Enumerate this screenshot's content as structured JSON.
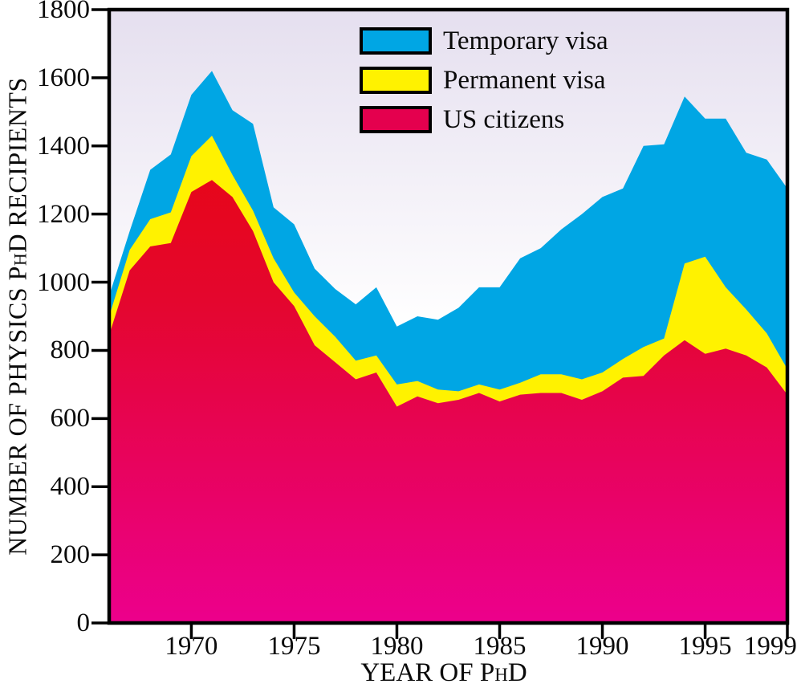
{
  "figure": {
    "y_axis": {
      "title": "NUMBER OF PHYSICS PhD RECIPIENTS",
      "ticks": [
        0,
        200,
        400,
        600,
        800,
        1000,
        1200,
        1400,
        1600,
        1800
      ],
      "min": 0,
      "max": 1800
    },
    "x_axis": {
      "title": "YEAR OF PhD",
      "ticks": [
        1970,
        1975,
        1980,
        1985,
        1990,
        1995,
        1999
      ],
      "min": 1966,
      "max": 1999
    },
    "legend": [
      {
        "label": "Temporary visa",
        "color": "#00A6E4"
      },
      {
        "label": "Permanent visa",
        "color": "#FFF200"
      },
      {
        "label": "US citizens",
        "color": "#E4004E"
      }
    ],
    "colors": {
      "temporary_visa_area": "#00A6E4",
      "permanent_visa_area": "#FFF200",
      "us_citizens_top": "#E80712",
      "us_citizens_bottom": "#EC008C",
      "plot_bg_top": "#E5DFEF",
      "plot_bg_bottom": "#FFFFFF",
      "frame": "#000000"
    }
  },
  "chart_data": {
    "type": "area",
    "stacked": true,
    "title": "",
    "xlabel": "YEAR OF PhD",
    "ylabel": "NUMBER OF PHYSICS PhD RECIPIENTS",
    "xlim": [
      1966,
      1999
    ],
    "ylim": [
      0,
      1800
    ],
    "grid": false,
    "legend_position": "top-center-inside",
    "x": [
      1966,
      1967,
      1968,
      1969,
      1970,
      1971,
      1972,
      1973,
      1974,
      1975,
      1976,
      1977,
      1978,
      1979,
      1980,
      1981,
      1982,
      1983,
      1984,
      1985,
      1986,
      1987,
      1988,
      1989,
      1990,
      1991,
      1992,
      1993,
      1994,
      1995,
      1996,
      1997,
      1998,
      1999
    ],
    "series": [
      {
        "name": "US citizens",
        "values": [
          845,
          1035,
          1105,
          1115,
          1265,
          1300,
          1250,
          1150,
          1000,
          930,
          815,
          765,
          715,
          735,
          635,
          665,
          645,
          655,
          675,
          650,
          670,
          675,
          675,
          655,
          680,
          720,
          725,
          785,
          830,
          790,
          805,
          785,
          750,
          670
        ]
      },
      {
        "name": "Permanent visa",
        "values": [
          55,
          60,
          80,
          90,
          105,
          130,
          65,
          60,
          70,
          40,
          85,
          75,
          55,
          50,
          65,
          45,
          40,
          25,
          25,
          35,
          35,
          55,
          55,
          60,
          55,
          55,
          85,
          50,
          225,
          285,
          180,
          135,
          100,
          75
        ]
      },
      {
        "name": "Temporary visa",
        "values": [
          60,
          55,
          145,
          170,
          180,
          190,
          190,
          255,
          150,
          200,
          140,
          140,
          165,
          200,
          170,
          190,
          205,
          245,
          285,
          300,
          365,
          370,
          425,
          485,
          515,
          500,
          590,
          570,
          490,
          405,
          495,
          460,
          510,
          530
        ]
      }
    ],
    "stacked_totals_note": "peak total 1620 in 1971, trough 870 in 1980, secondary peak 1545 in 1994"
  }
}
